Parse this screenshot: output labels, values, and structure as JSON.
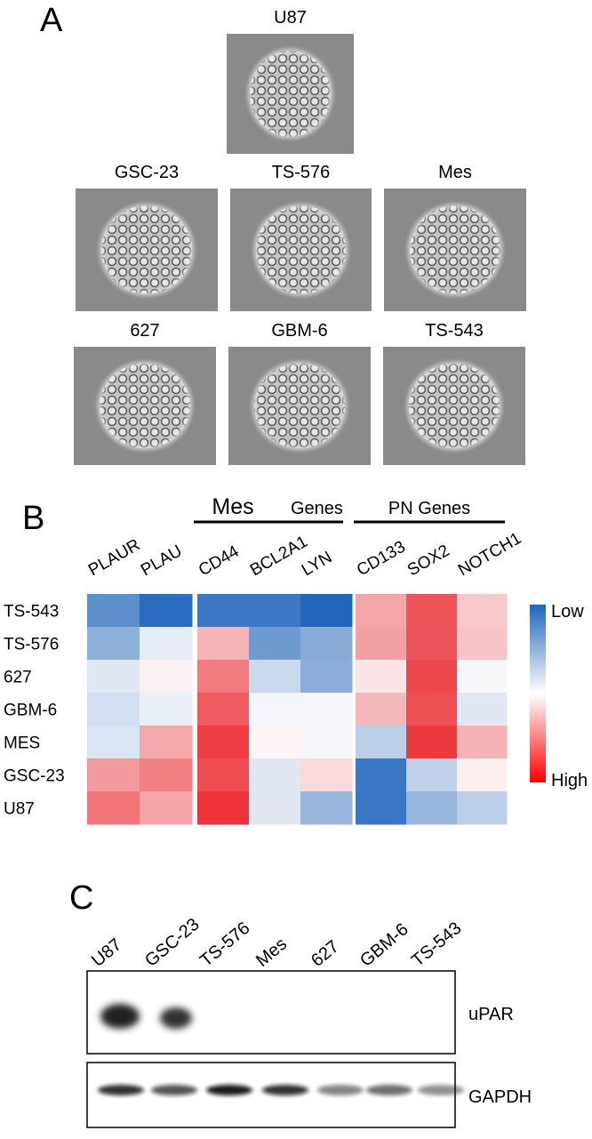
{
  "panel_a": {
    "letter": "A",
    "images": [
      {
        "label": "U87"
      },
      {
        "label": "GSC-23"
      },
      {
        "label": "TS-576"
      },
      {
        "label": "Mes"
      },
      {
        "label": "627"
      },
      {
        "label": "GBM-6"
      },
      {
        "label": "TS-543"
      }
    ]
  },
  "panel_b": {
    "letter": "B",
    "groups": [
      {
        "label": "Mes",
        "suffix": "Genes"
      },
      {
        "label": "PN Genes"
      }
    ],
    "columns": [
      "PLAUR",
      "PLAU",
      "CD44",
      "BCL2A1",
      "LYN",
      "CD133",
      "SOX2",
      "NOTCH1"
    ],
    "rows": [
      "TS-543",
      "TS-576",
      "627",
      "GBM-6",
      "MES",
      "GSC-23",
      "U87"
    ],
    "colors": [
      [
        "#5d8fcc",
        "#2a6cbf",
        "#3b77c4",
        "#3b77c4",
        "#2266bc",
        "#f3a5a8",
        "#ee5458",
        "#f6c9cb"
      ],
      [
        "#8eb1da",
        "#e6edf6",
        "#f6b4b6",
        "#6e9bd0",
        "#88acd8",
        "#f3a0a3",
        "#ee555a",
        "#f5c4c6"
      ],
      [
        "#e0e8f4",
        "#fcf1f2",
        "#f17b7e",
        "#cbd9ee",
        "#8aaddb",
        "#fbe4e5",
        "#ee474c",
        "#f8f8fb"
      ],
      [
        "#d3dff0",
        "#eaf0f8",
        "#ef5c60",
        "#f5f6fb",
        "#f5f6fb",
        "#f5b9bb",
        "#ee5055",
        "#e1e8f4"
      ],
      [
        "#dae4f2",
        "#f4a8aa",
        "#ee3e43",
        "#fdf4f5",
        "#f8f6fa",
        "#bccfe9",
        "#ec3a3f",
        "#f4b3b5"
      ],
      [
        "#f2999c",
        "#f18184",
        "#ef4d52",
        "#e1e8f4",
        "#f9dadb",
        "#3a76c3",
        "#c0d2ea",
        "#fbeff0"
      ],
      [
        "#f07478",
        "#f4a4a6",
        "#ee3338",
        "#e1e8f4",
        "#98b5dc",
        "#3a76c3",
        "#98b5dc",
        "#bccfe9"
      ]
    ],
    "legend": {
      "low": "Low",
      "high": "High"
    }
  },
  "panel_c": {
    "letter": "C",
    "lanes": [
      "U87",
      "GSC-23",
      "TS-576",
      "Mes",
      "627",
      "GBM-6",
      "TS-543"
    ],
    "blots": [
      "uPAR",
      "GAPDH"
    ]
  }
}
